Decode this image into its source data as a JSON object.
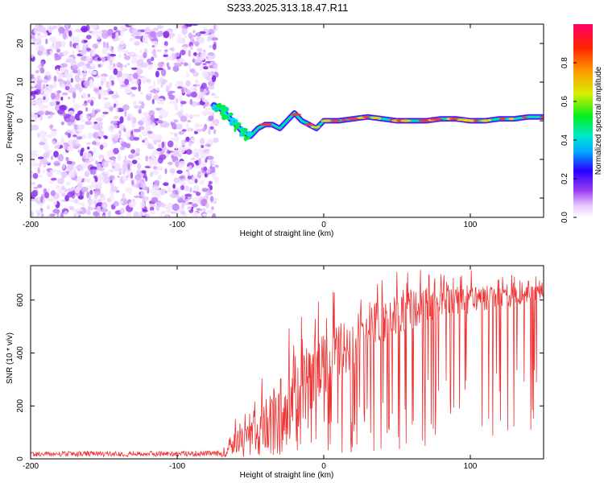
{
  "title": "S233.2025.313.18.47.R11",
  "chart_data": [
    {
      "type": "heatmap",
      "title": "S233.2025.313.18.47.R11",
      "xlabel": "Height of straight line (km)",
      "ylabel": "Frequency (Hz)",
      "xlim": [
        -200,
        150
      ],
      "ylim": [
        -25,
        25
      ],
      "xticks": [
        -200,
        -100,
        0,
        100
      ],
      "yticks": [
        -20,
        -10,
        0,
        10,
        20
      ],
      "noise_region_x": [
        -200,
        -73
      ],
      "signal_trace": {
        "x": [
          -75,
          -70,
          -65,
          -60,
          -55,
          -50,
          -45,
          -40,
          -35,
          -30,
          -25,
          -20,
          -15,
          -10,
          -5,
          0,
          10,
          20,
          30,
          40,
          50,
          60,
          70,
          80,
          90,
          100,
          110,
          120,
          130,
          140,
          150
        ],
        "freq": [
          4,
          3,
          1,
          -1,
          -3,
          -4,
          -2,
          -1,
          -1,
          -2,
          0,
          2,
          0,
          -1,
          -2,
          0,
          0,
          0.5,
          1,
          0.5,
          0,
          0,
          0,
          0.5,
          0.5,
          0,
          0,
          0.5,
          0.5,
          1,
          1
        ]
      },
      "colorbar": {
        "label": "Normalized spectral amplitude",
        "range": [
          0.0,
          1.0
        ],
        "ticks": [
          "0.0",
          "0.2",
          "0.4",
          "0.6",
          "0.8"
        ]
      }
    },
    {
      "type": "line",
      "xlabel": "Height of straight line (km)",
      "ylabel": "SNR (10 * v/v)",
      "xlim": [
        -200,
        150
      ],
      "ylim": [
        0,
        730
      ],
      "xticks": [
        -200,
        -100,
        0,
        100
      ],
      "yticks": [
        0,
        200,
        400,
        600
      ],
      "color": "#ee3333",
      "series_envelope": {
        "x": [
          -200,
          -70,
          -60,
          -50,
          -40,
          -30,
          -20,
          -10,
          0,
          10,
          20,
          30,
          40,
          50,
          60,
          70,
          80,
          90,
          100,
          110,
          120,
          130,
          140,
          150
        ],
        "mean": [
          18,
          20,
          60,
          90,
          120,
          170,
          240,
          300,
          340,
          400,
          440,
          480,
          520,
          540,
          560,
          580,
          590,
          600,
          600,
          610,
          610,
          610,
          620,
          630
        ],
        "max": [
          35,
          40,
          160,
          200,
          350,
          520,
          560,
          600,
          620,
          640,
          680,
          700,
          710,
          720,
          720,
          720,
          720,
          720,
          730,
          720,
          700,
          700,
          690,
          700
        ]
      }
    }
  ]
}
